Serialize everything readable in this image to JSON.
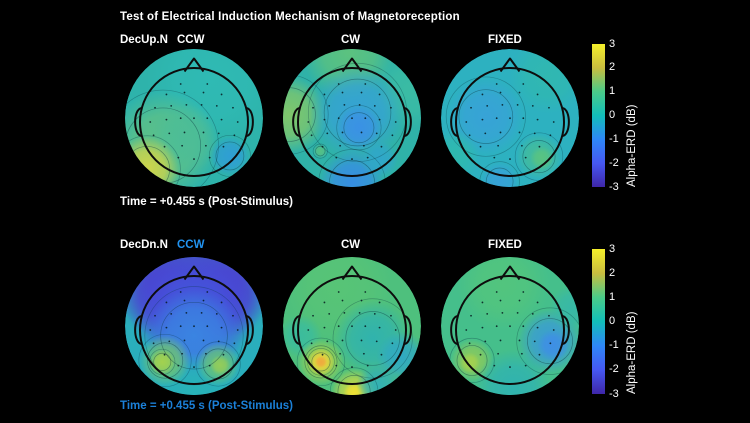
{
  "colors": {
    "background": "#000000",
    "text": "#ffffff",
    "accent_blue": "#2193f0",
    "caption_blue": "#1b80d8"
  },
  "chart_data": {
    "type": "heatmap",
    "subtype": "eeg-scalp-topography-grid",
    "title": "Test of Electrical Induction Mechanism of Magnetoreception",
    "colorbar": {
      "label": "Alpha-ERD (dB)",
      "ticks": [
        "3",
        "2",
        "1",
        "0",
        "-1",
        "-2",
        "-3"
      ],
      "range": [
        -3,
        3
      ],
      "colormap": "parula",
      "gradient_stops_bottom_to_top": [
        "#3e26a8",
        "#4658f2",
        "#2e87f7",
        "#12beb9",
        "#4acb89",
        "#c9bd3f",
        "#f5ef2a"
      ]
    },
    "rows": [
      {
        "label": "DecUp.N",
        "label_color": "#ffffff",
        "time_caption": "Time = +0.455 s (Post-Stimulus)",
        "caption_color": "#ffffff",
        "panels": [
          {
            "condition": "CCW",
            "condition_color": "#ffffff",
            "base_color": "#2eb3ab",
            "base_value_db": 0.1,
            "features": [
              {
                "region": "left occipito-temporal",
                "value_db": 2.0
              },
              {
                "region": "left parietal",
                "value_db": 1.0
              },
              {
                "region": "right parieto-occipital",
                "value_db": -0.7
              }
            ],
            "blobs": [
              {
                "x": 0.25,
                "y": -0.55,
                "r": 0.85,
                "color": "#2fbab4"
              },
              {
                "x": -0.45,
                "y": 0.4,
                "r": 0.7,
                "color": "#62c284",
                "ring": true
              },
              {
                "x": -0.15,
                "y": 0.3,
                "r": 0.45,
                "color": "#4cbd97"
              },
              {
                "x": -0.68,
                "y": 0.74,
                "r": 0.42,
                "color": "#d5d647",
                "ring": true
              },
              {
                "x": 0.52,
                "y": 0.55,
                "r": 0.26,
                "color": "#2f9dd6",
                "ring": true
              }
            ]
          },
          {
            "condition": "CW",
            "condition_color": "#ffffff",
            "base_color": "#2fb2a8",
            "base_value_db": 0.2,
            "features": [
              {
                "region": "left temporal edge",
                "value_db": 1.0
              },
              {
                "region": "central-parietal",
                "value_db": -0.9
              },
              {
                "region": "below inion",
                "value_db": -1.0
              }
            ],
            "blobs": [
              {
                "x": -0.05,
                "y": -0.95,
                "r": 0.6,
                "color": "#5ec37d"
              },
              {
                "x": -0.92,
                "y": -0.05,
                "r": 0.5,
                "color": "#84c868",
                "ring": true
              },
              {
                "x": 0.85,
                "y": -0.4,
                "r": 0.5,
                "color": "#3bbca4"
              },
              {
                "x": 0.08,
                "y": -0.08,
                "r": 0.62,
                "color": "#36a2d6",
                "ring": true
              },
              {
                "x": 0.1,
                "y": 0.14,
                "r": 0.28,
                "color": "#3b90e6",
                "ring": true
              },
              {
                "x": 0.0,
                "y": 0.94,
                "r": 0.42,
                "color": "#378ce6",
                "ring": true
              },
              {
                "x": 0.4,
                "y": 0.6,
                "r": 0.24,
                "color": "#30a6cc"
              },
              {
                "x": -0.46,
                "y": 0.48,
                "r": 0.09,
                "color": "#58c183",
                "ring": true
              }
            ]
          },
          {
            "condition": "FIXED",
            "condition_color": "#ffffff",
            "base_color": "#2db1c0",
            "base_value_db": -0.3,
            "features": [
              {
                "region": "left central",
                "value_db": -0.8
              },
              {
                "region": "right occipital",
                "value_db": 0.6
              },
              {
                "region": "below inion",
                "value_db": -0.8
              }
            ],
            "blobs": [
              {
                "x": 0.55,
                "y": -0.62,
                "r": 0.5,
                "color": "#30b8b0"
              },
              {
                "x": -0.35,
                "y": -0.02,
                "r": 0.5,
                "color": "#38a2d8",
                "ring": true
              },
              {
                "x": 0.42,
                "y": 0.56,
                "r": 0.3,
                "color": "#45bd98",
                "ring": true
              },
              {
                "x": 0.46,
                "y": 0.58,
                "r": 0.15,
                "color": "#5ac480"
              },
              {
                "x": -0.15,
                "y": 0.92,
                "r": 0.25,
                "color": "#37a0d8",
                "ring": true
              },
              {
                "x": -0.8,
                "y": 0.55,
                "r": 0.33,
                "color": "#2fb9ae"
              }
            ]
          }
        ]
      },
      {
        "label": "DecDn.N",
        "label_color": "#ffffff",
        "time_caption": "Time = +0.455 s (Post-Stimulus)",
        "caption_color": "#1b80d8",
        "panels": [
          {
            "condition": "CCW",
            "condition_color": "#2193f0",
            "base_color": "#2aaebc",
            "base_value_db": 0.0,
            "features": [
              {
                "region": "frontal-central (broad)",
                "value_db": -2.3
              },
              {
                "region": "parietal transition band",
                "value_db": -1.0
              },
              {
                "region": "left occipital",
                "value_db": 1.3
              },
              {
                "region": "right occipital",
                "value_db": 1.0
              }
            ],
            "blobs": [
              {
                "x": 0.0,
                "y": -0.72,
                "r": 1.05,
                "color": "#4a41d0"
              },
              {
                "x": -0.45,
                "y": -0.45,
                "r": 0.55,
                "color": "#4b40d2"
              },
              {
                "x": 0.45,
                "y": -0.45,
                "r": 0.55,
                "color": "#4b40d2"
              },
              {
                "x": 0.0,
                "y": -0.15,
                "r": 0.75,
                "color": "#4356dc"
              },
              {
                "x": 0.0,
                "y": 0.14,
                "r": 0.62,
                "color": "#3a86e2",
                "ring": true
              },
              {
                "x": 0.0,
                "y": 0.95,
                "r": 0.5,
                "color": "#28b2b8"
              },
              {
                "x": -0.42,
                "y": 0.5,
                "r": 0.33,
                "color": "#72c66e",
                "ring": true
              },
              {
                "x": -0.46,
                "y": 0.52,
                "r": 0.16,
                "color": "#a6d24d",
                "ring": true
              },
              {
                "x": 0.35,
                "y": 0.55,
                "r": 0.28,
                "color": "#69c476",
                "ring": true
              },
              {
                "x": 0.38,
                "y": 0.57,
                "r": 0.13,
                "color": "#96cd58"
              }
            ]
          },
          {
            "condition": "CW",
            "condition_color": "#ffffff",
            "base_color": "#4ec07d",
            "base_value_db": 0.9,
            "features": [
              {
                "region": "left occipital hotspot",
                "value_db": 2.8
              },
              {
                "region": "below inion hotspot",
                "value_db": 2.4
              },
              {
                "region": "right central-parietal",
                "value_db": 0.0
              }
            ],
            "blobs": [
              {
                "x": -0.2,
                "y": -0.55,
                "r": 0.7,
                "color": "#58c476"
              },
              {
                "x": 0.3,
                "y": 0.18,
                "r": 0.5,
                "color": "#2fb2b0",
                "ring": true
              },
              {
                "x": 0.72,
                "y": 0.45,
                "r": 0.33,
                "color": "#2fa8c6"
              },
              {
                "x": -0.75,
                "y": 0.15,
                "r": 0.28,
                "color": "#3abc9f"
              },
              {
                "x": -0.45,
                "y": 0.52,
                "r": 0.3,
                "color": "#a8d24c",
                "ring": true
              },
              {
                "x": -0.45,
                "y": 0.52,
                "r": 0.17,
                "color": "#f0d43a",
                "ring": true
              },
              {
                "x": -0.45,
                "y": 0.52,
                "r": 0.08,
                "color": "#efa73e"
              },
              {
                "x": 0.03,
                "y": 0.95,
                "r": 0.3,
                "color": "#c6d846",
                "ring": true
              },
              {
                "x": 0.03,
                "y": 0.97,
                "r": 0.14,
                "color": "#f0e033"
              },
              {
                "x": 0.38,
                "y": 0.85,
                "r": 0.28,
                "color": "#32b0b6"
              }
            ]
          },
          {
            "condition": "FIXED",
            "condition_color": "#ffffff",
            "base_color": "#45bf8b",
            "base_value_db": 0.8,
            "features": [
              {
                "region": "right temporo-parietal",
                "value_db": -0.9
              },
              {
                "region": "left occipital",
                "value_db": 1.4
              },
              {
                "region": "below inion",
                "value_db": 0.0
              }
            ],
            "blobs": [
              {
                "x": -0.1,
                "y": -0.6,
                "r": 0.6,
                "color": "#53c57d"
              },
              {
                "x": 0.58,
                "y": 0.22,
                "r": 0.42,
                "color": "#3a9ad8",
                "ring": true
              },
              {
                "x": 0.62,
                "y": 0.28,
                "r": 0.2,
                "color": "#3f8ee6"
              },
              {
                "x": -0.55,
                "y": 0.5,
                "r": 0.28,
                "color": "#8cca5b",
                "ring": true
              },
              {
                "x": -0.58,
                "y": 0.53,
                "r": 0.13,
                "color": "#a6d24e"
              },
              {
                "x": 0.05,
                "y": 0.9,
                "r": 0.5,
                "color": "#2fb2b2"
              },
              {
                "x": 0.9,
                "y": -0.25,
                "r": 0.3,
                "color": "#37b8a8"
              }
            ]
          }
        ]
      }
    ]
  }
}
